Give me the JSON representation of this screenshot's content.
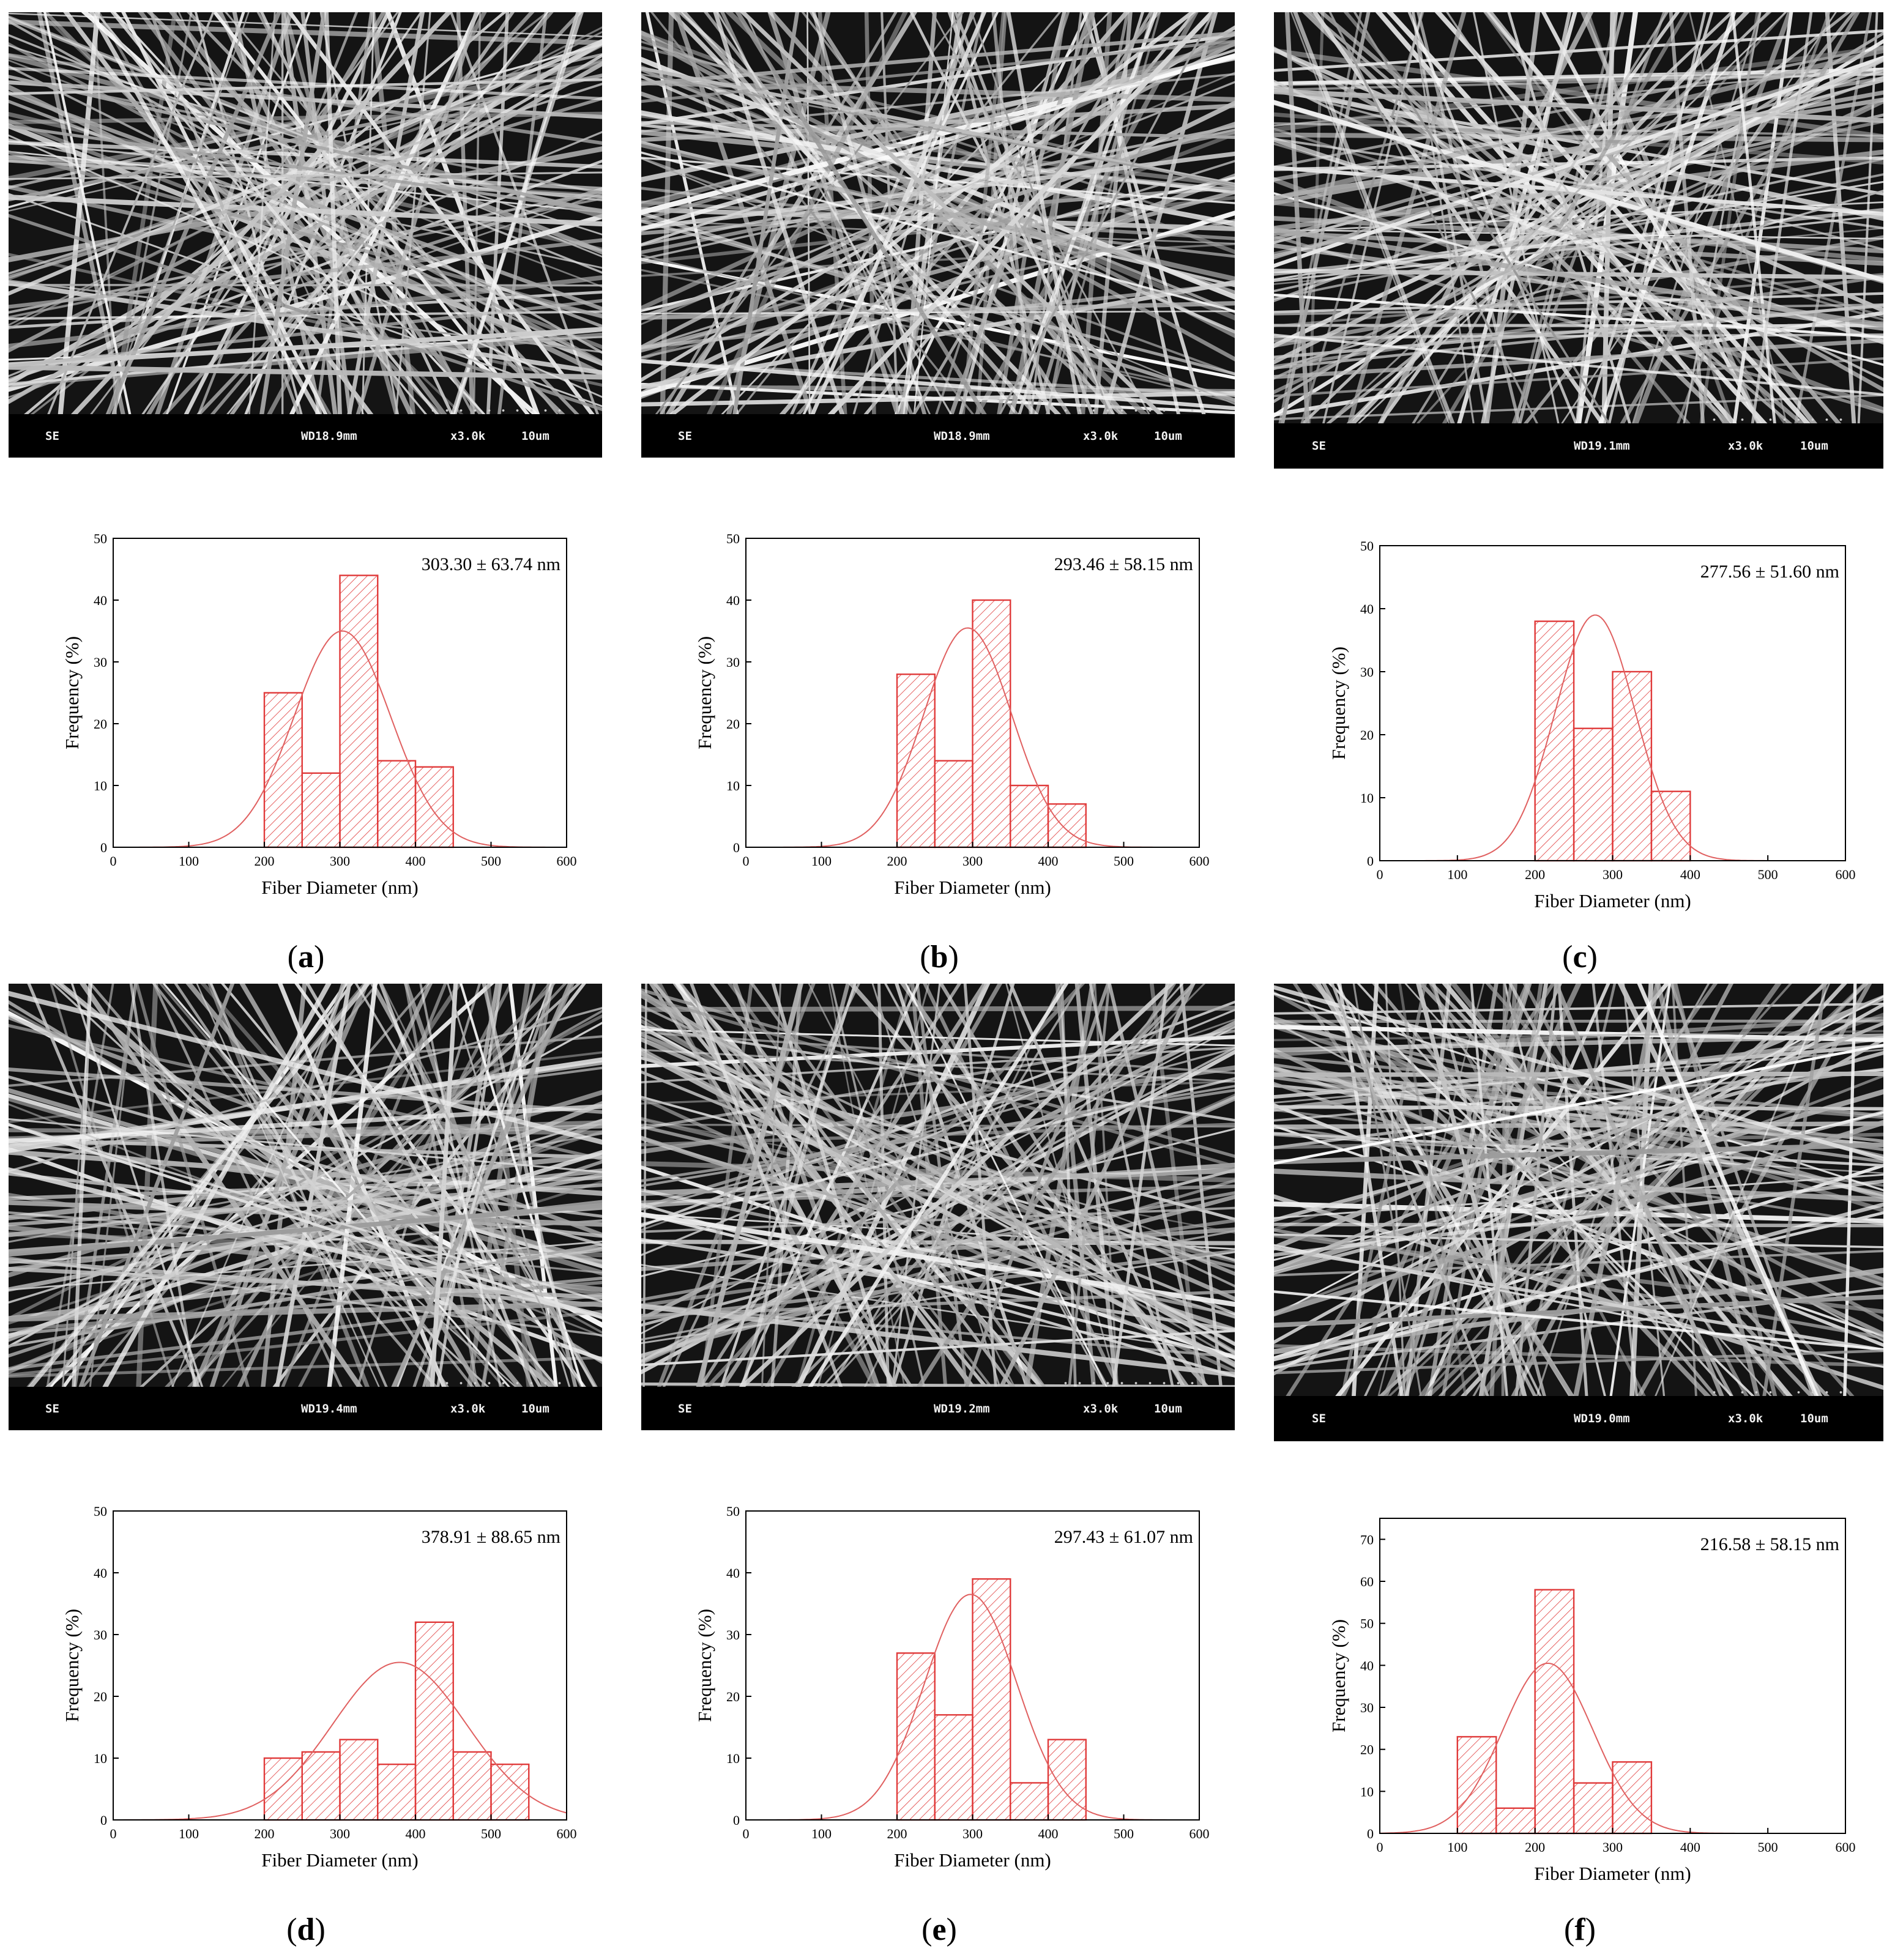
{
  "colors": {
    "bar_edge": "#e03a3a",
    "bar_hatch": "#e03a3a",
    "fit_curve": "#e06060",
    "sem_bg": "#0c0c0c"
  },
  "panels": [
    {
      "id": "a",
      "label_open": "(",
      "label_letter": "a",
      "label_close": ")",
      "sem": {
        "mode": "SE",
        "wd": "WD18.9mm",
        "mag": "x3.0k",
        "scale": "10um"
      },
      "stat": "303.30 ± 63.74 nm"
    },
    {
      "id": "b",
      "label_open": "(",
      "label_letter": "b",
      "label_close": ")",
      "sem": {
        "mode": "SE",
        "wd": "WD18.9mm",
        "mag": "x3.0k",
        "scale": "10um"
      },
      "stat": "293.46 ± 58.15 nm"
    },
    {
      "id": "c",
      "label_open": "(",
      "label_letter": "c",
      "label_close": ")",
      "sem": {
        "mode": "SE",
        "wd": "WD19.1mm",
        "mag": "x3.0k",
        "scale": "10um"
      },
      "stat": "277.56 ± 51.60 nm"
    },
    {
      "id": "d",
      "label_open": "(",
      "label_letter": "d",
      "label_close": ")",
      "sem": {
        "mode": "SE",
        "wd": "WD19.4mm",
        "mag": "x3.0k",
        "scale": "10um"
      },
      "stat": "378.91 ± 88.65 nm"
    },
    {
      "id": "e",
      "label_open": "(",
      "label_letter": "e",
      "label_close": ")",
      "sem": {
        "mode": "SE",
        "wd": "WD19.2mm",
        "mag": "x3.0k",
        "scale": "10um"
      },
      "stat": "297.43 ± 61.07 nm"
    },
    {
      "id": "f",
      "label_open": "(",
      "label_letter": "f",
      "label_close": ")",
      "sem": {
        "mode": "SE",
        "wd": "WD19.0mm",
        "mag": "x3.0k",
        "scale": "10um"
      },
      "stat": "216.58 ± 58.15 nm"
    }
  ],
  "chart_data": [
    {
      "panel": "a",
      "type": "bar",
      "xlabel": "Fiber Diameter (nm)",
      "ylabel": "Frequency (%)",
      "xlim": [
        0,
        600
      ],
      "ylim": [
        0,
        50
      ],
      "xticks": [
        0,
        100,
        200,
        300,
        400,
        500,
        600
      ],
      "yticks": [
        0,
        10,
        20,
        30,
        40,
        50
      ],
      "bins": [
        [
          200,
          250,
          25
        ],
        [
          250,
          300,
          12
        ],
        [
          300,
          350,
          44
        ],
        [
          350,
          400,
          14
        ],
        [
          400,
          450,
          13
        ]
      ],
      "fit": {
        "mean": 303.3,
        "sd": 63.74,
        "peak": 35
      }
    },
    {
      "panel": "b",
      "type": "bar",
      "xlabel": "Fiber Diameter (nm)",
      "ylabel": "Frequency (%)",
      "xlim": [
        0,
        600
      ],
      "ylim": [
        0,
        50
      ],
      "xticks": [
        0,
        100,
        200,
        300,
        400,
        500,
        600
      ],
      "yticks": [
        0,
        10,
        20,
        30,
        40,
        50
      ],
      "bins": [
        [
          200,
          250,
          28
        ],
        [
          250,
          300,
          14
        ],
        [
          300,
          350,
          40
        ],
        [
          350,
          400,
          10
        ],
        [
          400,
          450,
          7
        ]
      ],
      "fit": {
        "mean": 293.46,
        "sd": 58.15,
        "peak": 35.5
      }
    },
    {
      "panel": "c",
      "type": "bar",
      "xlabel": "Fiber Diameter (nm)",
      "ylabel": "Frequency (%)",
      "xlim": [
        0,
        600
      ],
      "ylim": [
        0,
        50
      ],
      "xticks": [
        0,
        100,
        200,
        300,
        400,
        500,
        600
      ],
      "yticks": [
        0,
        10,
        20,
        30,
        40,
        50
      ],
      "bins": [
        [
          200,
          250,
          38
        ],
        [
          250,
          300,
          21
        ],
        [
          300,
          350,
          30
        ],
        [
          350,
          400,
          11
        ]
      ],
      "fit": {
        "mean": 277.56,
        "sd": 51.6,
        "peak": 39
      }
    },
    {
      "panel": "d",
      "type": "bar",
      "xlabel": "Fiber Diameter (nm)",
      "ylabel": "Frequency (%)",
      "xlim": [
        0,
        600
      ],
      "ylim": [
        0,
        50
      ],
      "xticks": [
        0,
        100,
        200,
        300,
        400,
        500,
        600
      ],
      "yticks": [
        0,
        10,
        20,
        30,
        40,
        50
      ],
      "bins": [
        [
          200,
          250,
          10
        ],
        [
          250,
          300,
          11
        ],
        [
          300,
          350,
          13
        ],
        [
          350,
          400,
          9
        ],
        [
          400,
          450,
          32
        ],
        [
          450,
          500,
          11
        ],
        [
          500,
          550,
          9
        ]
      ],
      "fit": {
        "mean": 378.91,
        "sd": 88.65,
        "peak": 25.5
      }
    },
    {
      "panel": "e",
      "type": "bar",
      "xlabel": "Fiber Diameter (nm)",
      "ylabel": "Frequency (%)",
      "xlim": [
        0,
        600
      ],
      "ylim": [
        0,
        50
      ],
      "xticks": [
        0,
        100,
        200,
        300,
        400,
        500,
        600
      ],
      "yticks": [
        0,
        10,
        20,
        30,
        40,
        50
      ],
      "bins": [
        [
          200,
          250,
          27
        ],
        [
          250,
          300,
          17
        ],
        [
          300,
          350,
          39
        ],
        [
          350,
          400,
          6
        ],
        [
          400,
          450,
          13
        ]
      ],
      "fit": {
        "mean": 297.43,
        "sd": 61.07,
        "peak": 36.5
      }
    },
    {
      "panel": "f",
      "type": "bar",
      "xlabel": "Fiber Diameter (nm)",
      "ylabel": "Frequency (%)",
      "xlim": [
        0,
        600
      ],
      "ylim": [
        0,
        75
      ],
      "xticks": [
        0,
        100,
        200,
        300,
        400,
        500,
        600
      ],
      "yticks": [
        0,
        10,
        20,
        30,
        40,
        50,
        60,
        70
      ],
      "bins": [
        [
          100,
          150,
          23
        ],
        [
          150,
          200,
          6
        ],
        [
          200,
          250,
          58
        ],
        [
          250,
          300,
          12
        ],
        [
          300,
          350,
          17
        ]
      ],
      "fit": {
        "mean": 216.58,
        "sd": 58.15,
        "peak": 40.5
      }
    }
  ]
}
